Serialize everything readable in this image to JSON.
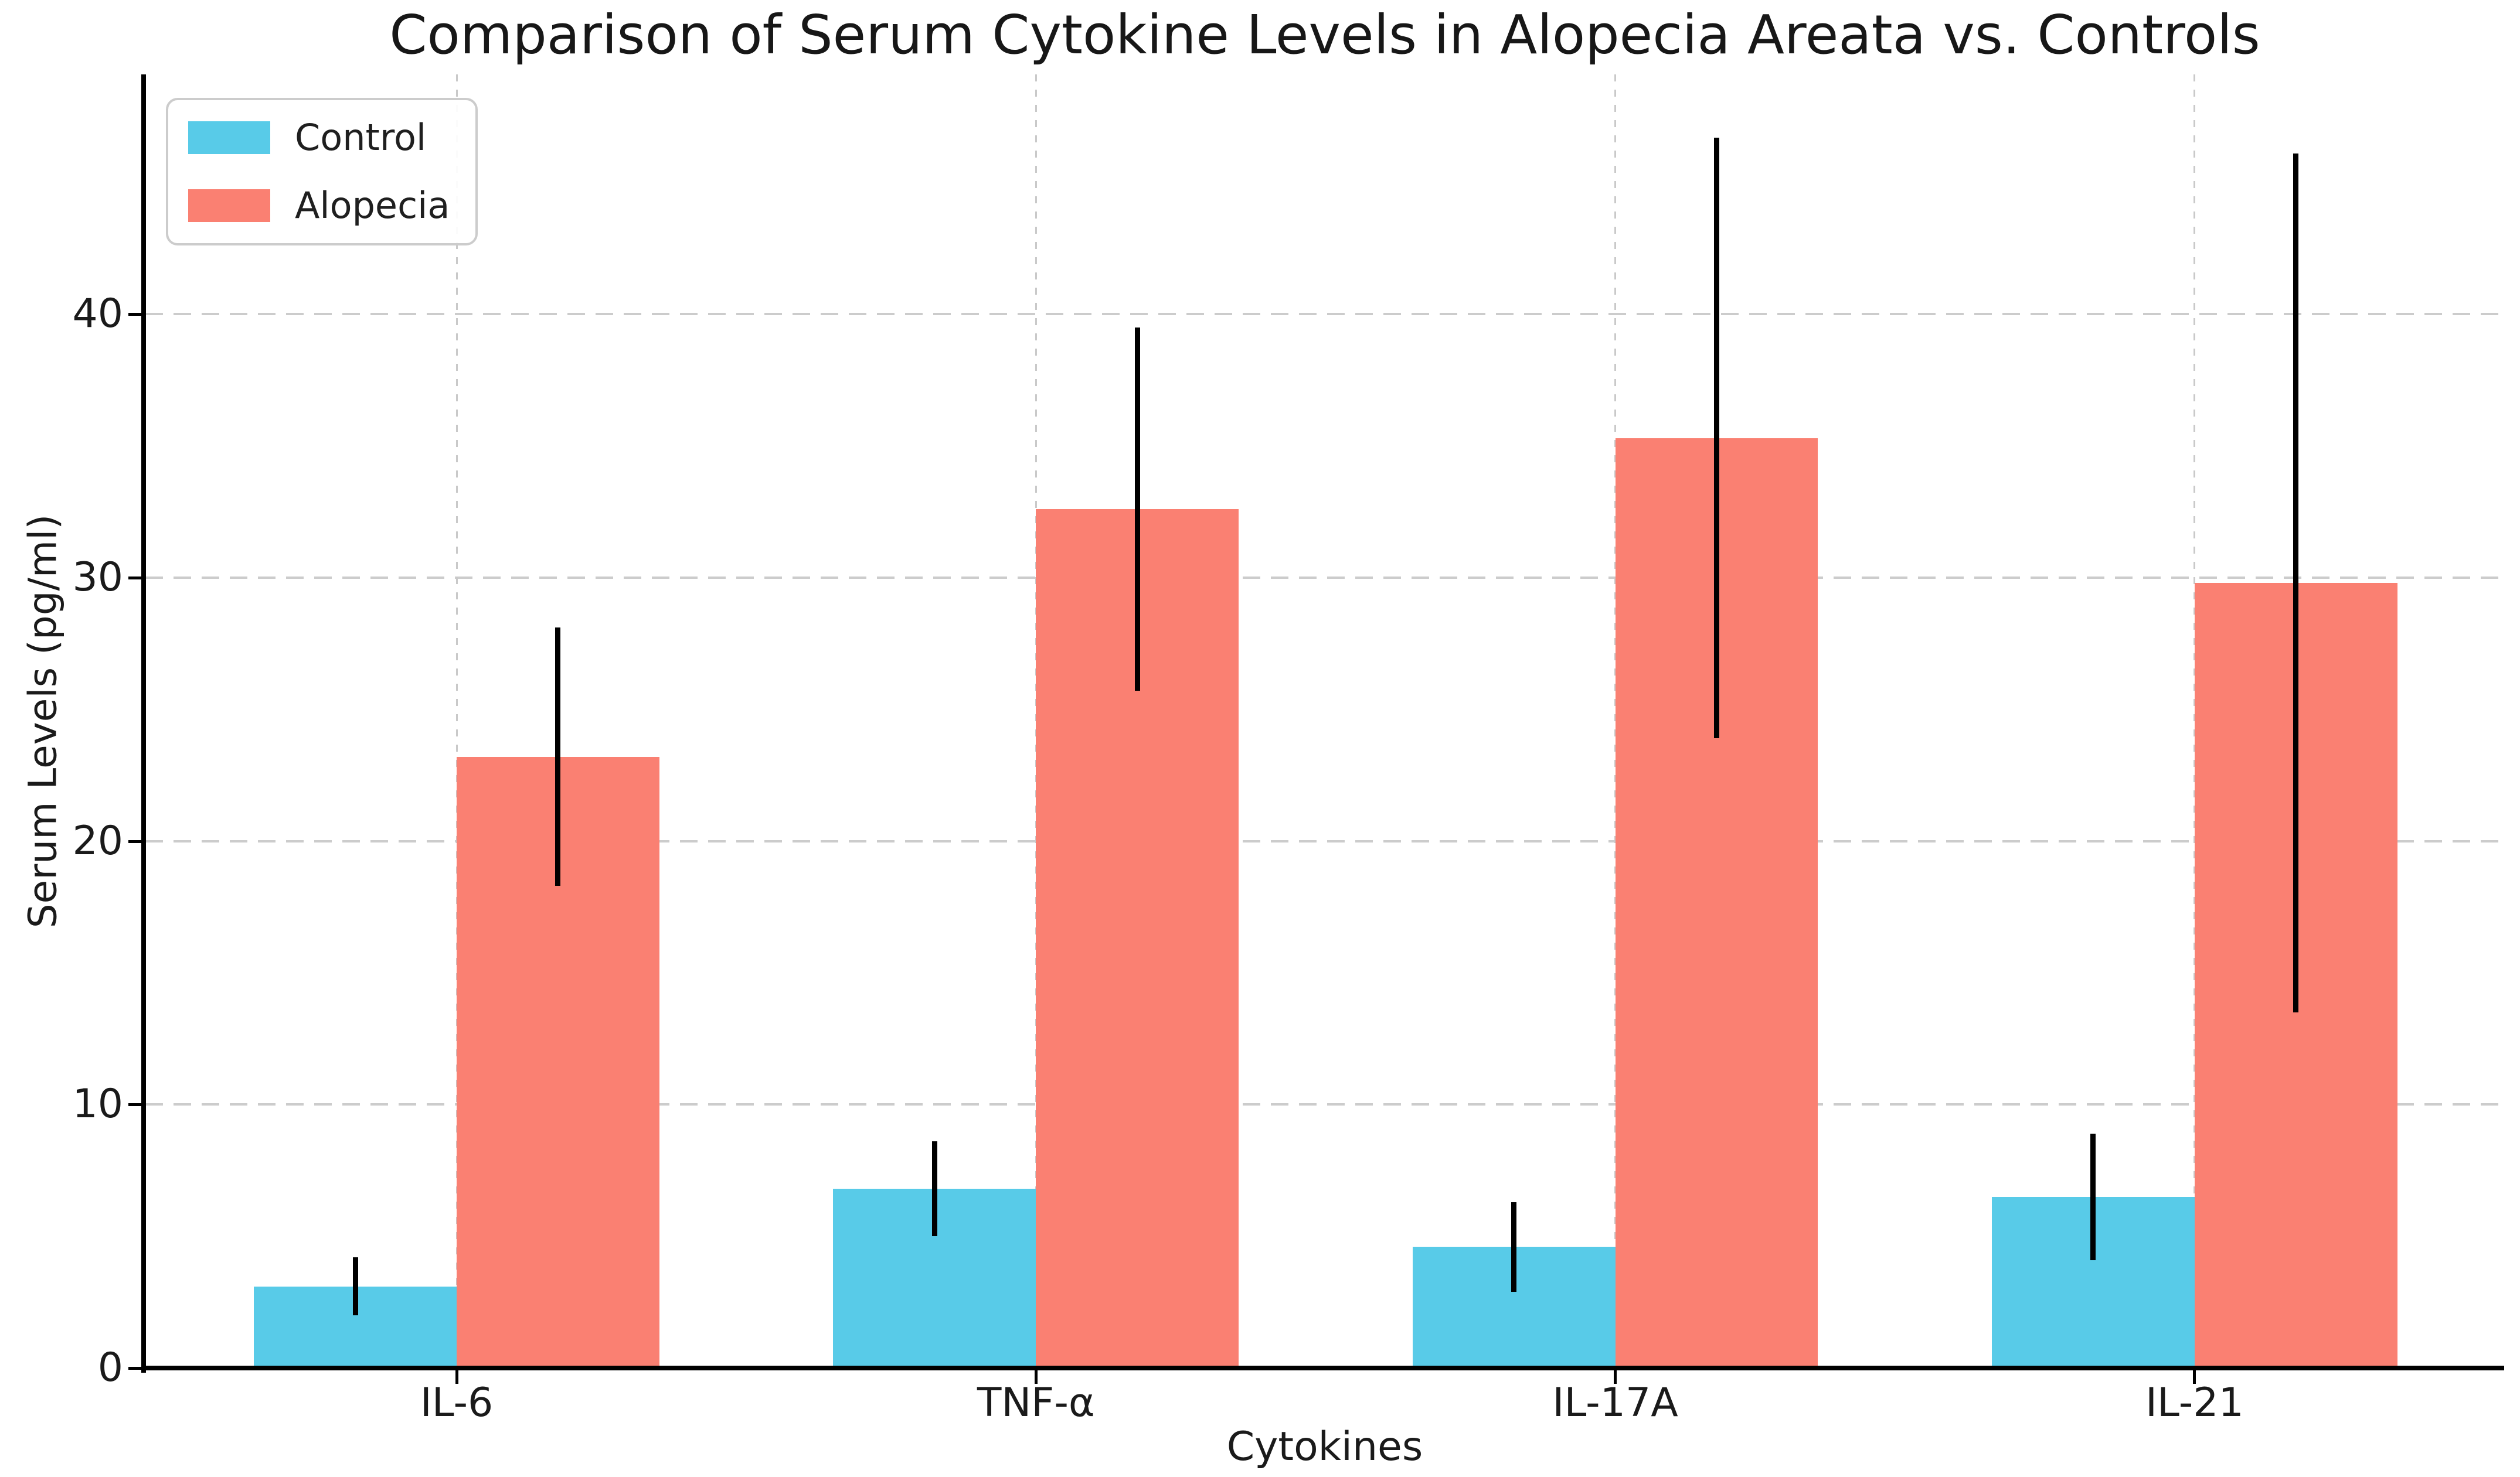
{
  "title": "Comparison of Serum Cytokine Levels in Alopecia Areata vs. Controls",
  "chart_data": {
    "type": "bar",
    "title": "Comparison of Serum Cytokine Levels in Alopecia Areata vs. Controls",
    "xlabel": "Cytokines",
    "ylabel": "Serum Levels (pg/ml)",
    "categories": [
      "IL-6",
      "TNF-α",
      "IL-17A",
      "IL-21"
    ],
    "series": [
      {
        "name": "Control",
        "color": "#58CBE8",
        "values": [
          3.1,
          6.8,
          4.6,
          6.5
        ],
        "errors": [
          1.1,
          1.8,
          1.7,
          2.4
        ]
      },
      {
        "name": "Alopecia",
        "color": "#FA8072",
        "values": [
          23.2,
          32.6,
          35.3,
          29.8
        ],
        "errors": [
          4.9,
          6.9,
          11.4,
          16.3
        ]
      }
    ],
    "yticks": [
      0,
      10,
      20,
      30,
      40
    ],
    "ylim": [
      0,
      49.1
    ],
    "grid": "dashed-both-axes",
    "grid_color": "#cccccc",
    "error_bar_color": "#000000",
    "legend_position": "upper-left",
    "bar_width_fraction": 0.35
  }
}
